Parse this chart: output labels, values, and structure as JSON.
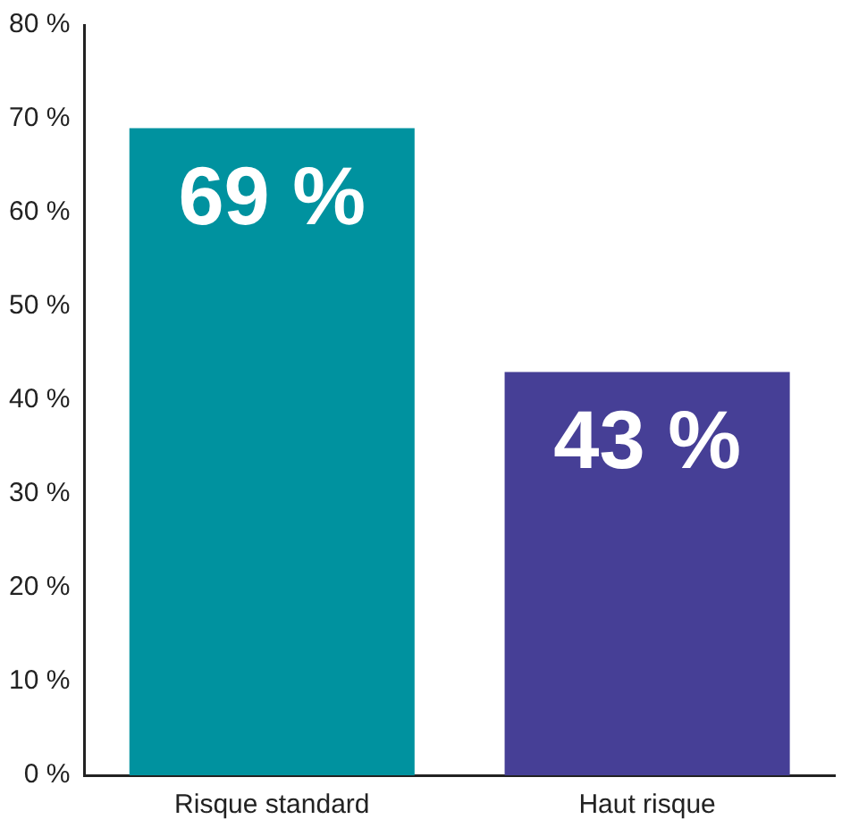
{
  "chart_data": {
    "type": "bar",
    "categories": [
      "Risque standard",
      "Haut risque"
    ],
    "values": [
      69,
      43
    ],
    "colors": [
      "#00929f",
      "#463f96"
    ],
    "value_labels": [
      "69 %",
      "43 %"
    ],
    "ylim": [
      0,
      80
    ],
    "yticks": [
      {
        "value": 0,
        "label": "0 %"
      },
      {
        "value": 10,
        "label": "10 %"
      },
      {
        "value": 20,
        "label": "20 %"
      },
      {
        "value": 30,
        "label": "30 %"
      },
      {
        "value": 40,
        "label": "40 %"
      },
      {
        "value": 50,
        "label": "50 %"
      },
      {
        "value": 60,
        "label": "60 %"
      },
      {
        "value": 70,
        "label": "70 %"
      },
      {
        "value": 80,
        "label": "80 %"
      }
    ],
    "grid": false,
    "legend": false
  }
}
